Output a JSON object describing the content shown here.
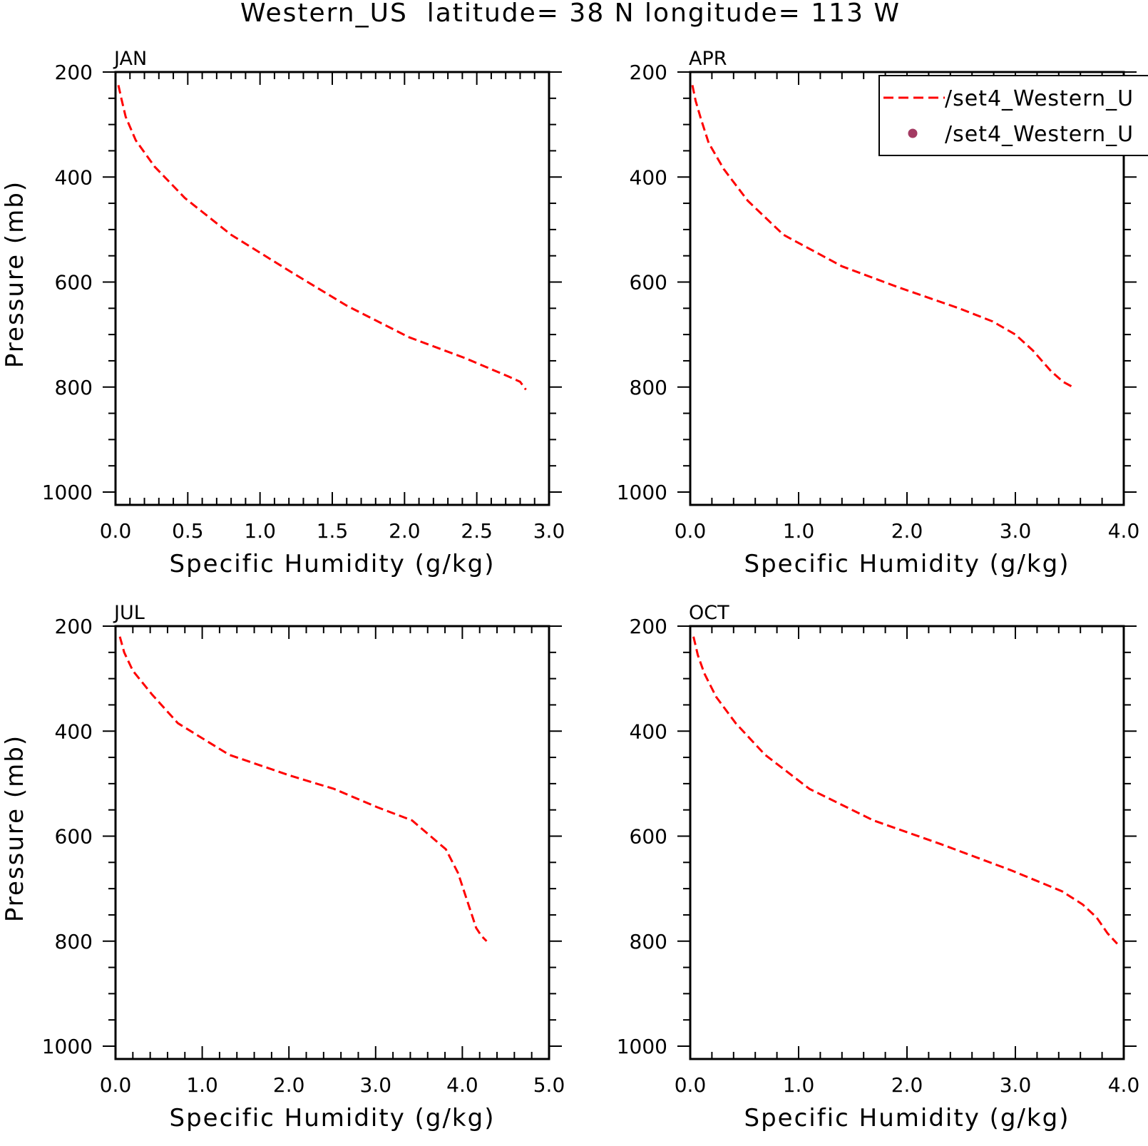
{
  "figure": {
    "title": "Western_US  latitude= 38 N longitude= 113 W"
  },
  "legend": {
    "entries": [
      {
        "label": "/set4_Western_U",
        "style": "dashed-line",
        "color": "#ff0000"
      },
      {
        "label": "/set4_Western_U",
        "style": "dot-marker",
        "color": "#a33a62"
      }
    ]
  },
  "colors": {
    "curve": "#ff0000",
    "marker": "#a33a62",
    "frame": "#000000"
  },
  "chart_data": [
    {
      "type": "line",
      "panel": "JAN",
      "xlabel": "Specific Humidity (g/kg)",
      "ylabel": "Pressure (mb)",
      "xlim": [
        0,
        3.0
      ],
      "ylim": [
        200,
        1000
      ],
      "y_inverted": true,
      "x_ticks": [
        "0.0",
        "0.5",
        "1.0",
        "1.5",
        "2.0",
        "2.5",
        "3.0"
      ],
      "y_ticks": [
        "200",
        "400",
        "600",
        "800",
        "1000"
      ],
      "series": [
        {
          "x": [
            0.02,
            0.04,
            0.07,
            0.14,
            0.27,
            0.48,
            0.8,
            1.21,
            1.6,
            2.03,
            2.42,
            2.72,
            2.8,
            2.84
          ],
          "y": [
            225,
            250,
            285,
            330,
            380,
            440,
            510,
            580,
            645,
            705,
            745,
            780,
            790,
            805
          ]
        }
      ]
    },
    {
      "type": "line",
      "panel": "APR",
      "xlabel": "Specific Humidity (g/kg)",
      "ylabel": "",
      "xlim": [
        0,
        4.0
      ],
      "ylim": [
        200,
        1000
      ],
      "y_inverted": true,
      "x_ticks": [
        "0.0",
        "1.0",
        "2.0",
        "3.0",
        "4.0"
      ],
      "y_ticks": [
        "200",
        "400",
        "600",
        "800",
        "1000"
      ],
      "series": [
        {
          "x": [
            0.02,
            0.05,
            0.1,
            0.17,
            0.31,
            0.53,
            0.86,
            1.4,
            1.92,
            2.48,
            2.79,
            3.0,
            3.16,
            3.33,
            3.44,
            3.53
          ],
          "y": [
            225,
            255,
            290,
            335,
            385,
            445,
            510,
            570,
            610,
            650,
            675,
            700,
            730,
            770,
            790,
            800
          ]
        }
      ]
    },
    {
      "type": "line",
      "panel": "JUL",
      "xlabel": "Specific Humidity (g/kg)",
      "ylabel": "Pressure (mb)",
      "xlim": [
        0,
        5.0
      ],
      "ylim": [
        200,
        1000
      ],
      "y_inverted": true,
      "x_ticks": [
        "0.0",
        "1.0",
        "2.0",
        "3.0",
        "4.0",
        "5.0"
      ],
      "y_ticks": [
        "200",
        "400",
        "600",
        "800",
        "1000"
      ],
      "series": [
        {
          "x": [
            0.05,
            0.1,
            0.2,
            0.42,
            0.72,
            1.31,
            2.02,
            2.52,
            3.02,
            3.42,
            3.81,
            3.95,
            4.07,
            4.16,
            4.22,
            4.28
          ],
          "y": [
            220,
            250,
            285,
            330,
            385,
            445,
            485,
            510,
            545,
            570,
            625,
            670,
            730,
            775,
            790,
            800
          ]
        }
      ]
    },
    {
      "type": "line",
      "panel": "OCT",
      "xlabel": "Specific Humidity (g/kg)",
      "ylabel": "",
      "xlim": [
        0,
        4.0
      ],
      "ylim": [
        200,
        1000
      ],
      "y_inverted": true,
      "x_ticks": [
        "0.0",
        "1.0",
        "2.0",
        "3.0",
        "4.0"
      ],
      "y_ticks": [
        "200",
        "400",
        "600",
        "800",
        "1000"
      ],
      "series": [
        {
          "x": [
            0.03,
            0.07,
            0.13,
            0.24,
            0.42,
            0.69,
            1.1,
            1.69,
            2.31,
            2.96,
            3.43,
            3.62,
            3.75,
            3.85,
            3.94
          ],
          "y": [
            220,
            255,
            290,
            335,
            385,
            445,
            510,
            570,
            615,
            665,
            705,
            730,
            755,
            785,
            805
          ]
        }
      ]
    }
  ]
}
